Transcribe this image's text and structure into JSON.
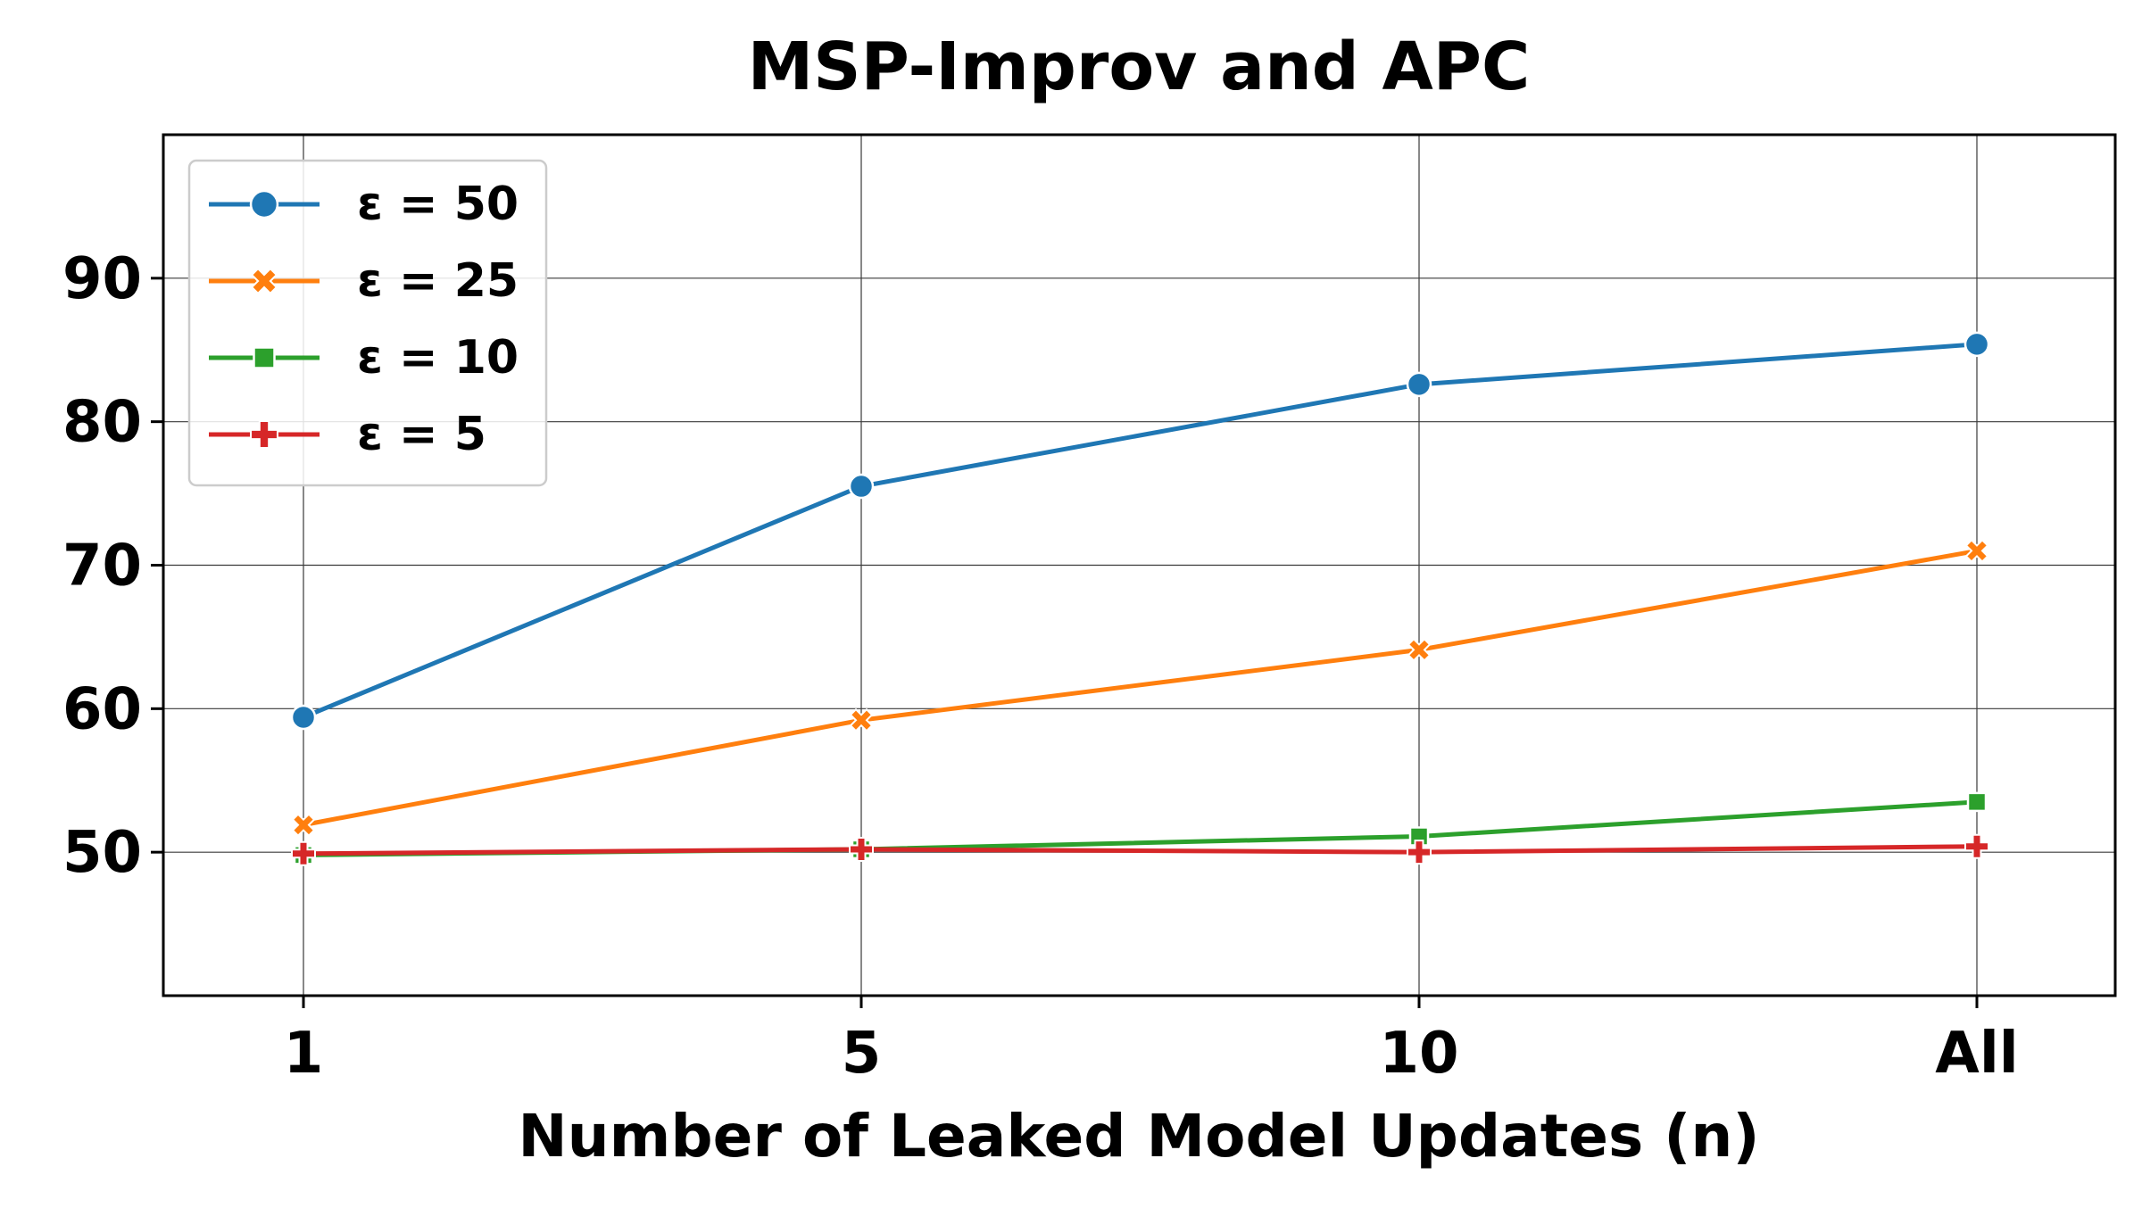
{
  "chart_data": {
    "type": "line",
    "title": "MSP-Improv and APC",
    "xlabel": "Number of Leaked Model Updates (n)",
    "ylabel": "",
    "categories": [
      "1",
      "5",
      "10",
      "All"
    ],
    "ylim": [
      40,
      100
    ],
    "yticks": [
      50,
      60,
      70,
      80,
      90
    ],
    "grid": true,
    "legend_position": "top-left",
    "series": [
      {
        "name": "ε = 50",
        "color": "#1f77b4",
        "marker": "circle",
        "values": [
          59.4,
          75.5,
          82.6,
          85.4
        ]
      },
      {
        "name": "ε = 25",
        "color": "#ff7f0e",
        "marker": "x",
        "values": [
          51.9,
          59.2,
          64.1,
          71.0
        ]
      },
      {
        "name": "ε = 10",
        "color": "#2ca02c",
        "marker": "square",
        "values": [
          49.8,
          50.2,
          51.1,
          53.5
        ]
      },
      {
        "name": "ε = 5",
        "color": "#d62728",
        "marker": "plus",
        "values": [
          49.9,
          50.2,
          50.0,
          50.4
        ]
      }
    ]
  }
}
